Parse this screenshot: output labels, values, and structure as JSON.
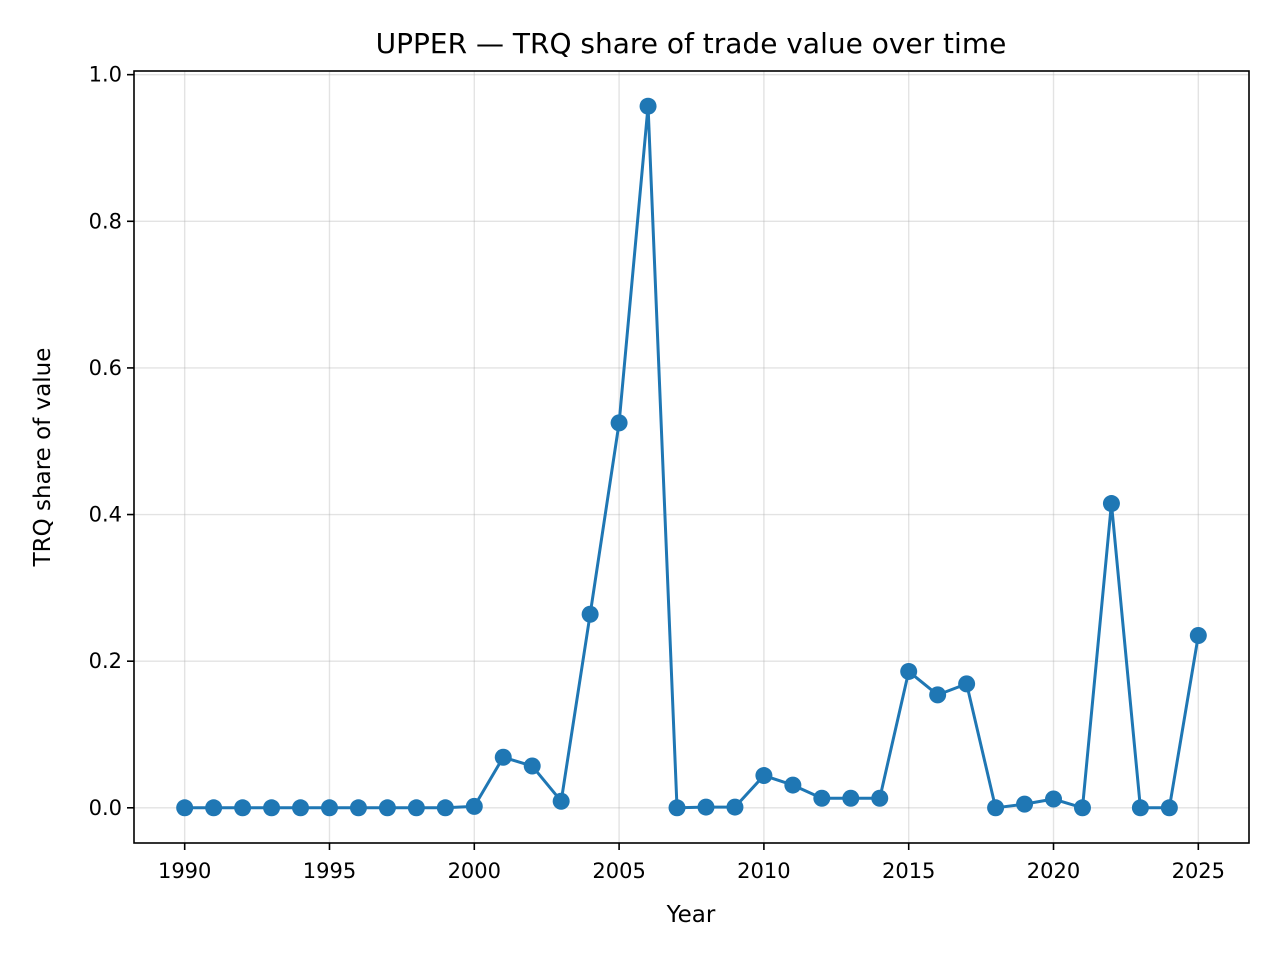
{
  "chart_data": {
    "type": "line",
    "title": "UPPER — TRQ share of trade value over time",
    "xlabel": "Year",
    "ylabel": "TRQ share of value",
    "xlim": [
      1988.25,
      2026.75
    ],
    "ylim": [
      -0.048,
      1.005
    ],
    "xticks": [
      1990,
      1995,
      2000,
      2005,
      2010,
      2015,
      2020,
      2025
    ],
    "yticks": [
      0.0,
      0.2,
      0.4,
      0.6,
      0.8,
      1.0
    ],
    "ytick_labels": [
      "0.0",
      "0.2",
      "0.4",
      "0.6",
      "0.8",
      "1.0"
    ],
    "grid": true,
    "color": "#1f77b4",
    "series": [
      {
        "x": [
          1990,
          1991,
          1992,
          1993,
          1994,
          1995,
          1996,
          1997,
          1998,
          1999,
          2000,
          2001,
          2002,
          2003,
          2004,
          2005,
          2006,
          2007,
          2008,
          2009,
          2010,
          2011,
          2012,
          2013,
          2014,
          2015,
          2016,
          2017,
          2018,
          2019,
          2020,
          2021,
          2022,
          2023,
          2024,
          2025
        ],
        "values": [
          0.0,
          0.0,
          0.0,
          0.0,
          0.0,
          0.0,
          0.0,
          0.0,
          0.0,
          0.0,
          0.002,
          0.069,
          0.057,
          0.009,
          0.264,
          0.525,
          0.957,
          0.0,
          0.001,
          0.001,
          0.044,
          0.031,
          0.013,
          0.013,
          0.013,
          0.186,
          0.154,
          0.169,
          0.0,
          0.005,
          0.012,
          0.0,
          0.415,
          0.0,
          0.0,
          0.235
        ]
      }
    ]
  }
}
